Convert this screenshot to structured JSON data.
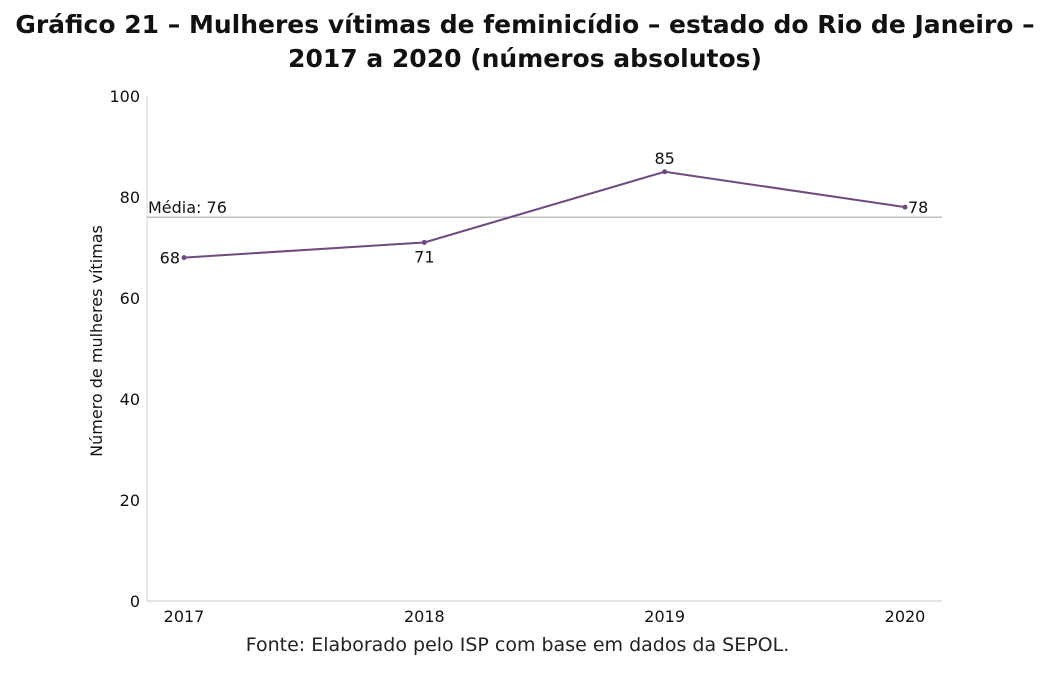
{
  "chart_data": {
    "type": "line",
    "title_line1": "Gráfico 21 – Mulheres vítimas de feminicídio – estado do Rio de Janeiro –",
    "title_line2": "2017 a 2020 (números absolutos)",
    "xlabel": "",
    "ylabel": "Número de mulheres vítimas",
    "categories": [
      "2017",
      "2018",
      "2019",
      "2020"
    ],
    "series": [
      {
        "values": [
          68,
          71,
          85,
          78
        ],
        "color": "#6e4a7e"
      }
    ],
    "ylim": [
      0,
      100
    ],
    "yticks": [
      0,
      20,
      40,
      60,
      80,
      100
    ],
    "reference_line": {
      "label": "Média: 76",
      "value": 76,
      "color": "#aaaaaa"
    },
    "data_labels": [
      "68",
      "71",
      "85",
      "78"
    ],
    "grid": false,
    "source": "Fonte: Elaborado pelo ISP com base em dados da SEPOL."
  }
}
